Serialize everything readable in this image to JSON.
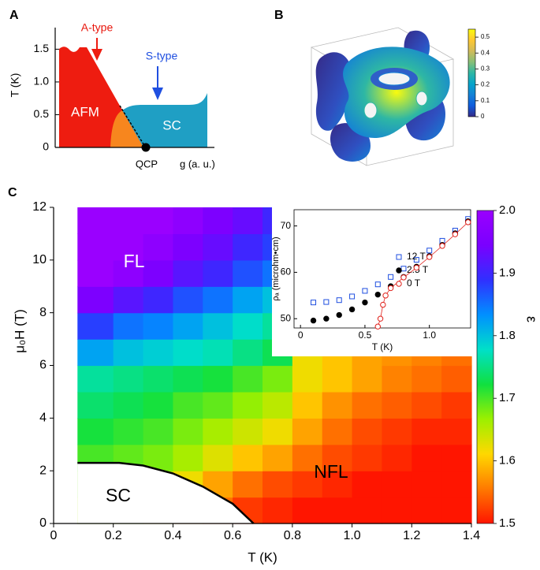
{
  "chart_data": [
    {
      "type": "phase-schematic",
      "panel": "A",
      "ylabel": "T (K)",
      "xlabel": "g (a. u.)",
      "ylim": [
        0,
        1.83
      ],
      "yticks": [
        0,
        0.5,
        {
          "value": 1,
          "label": "1.0"
        },
        1.5
      ],
      "annotations": [
        "AFM",
        "SC",
        "QCP",
        "A-type",
        "S-type"
      ],
      "colors": [
        "#ee1c10",
        "#f7861e",
        "#1f9fc4"
      ]
    },
    {
      "type": "surface",
      "panel": "B",
      "zlim": [
        0,
        0.55
      ],
      "zticks": [
        0,
        0.1,
        0.2,
        0.3,
        0.4,
        0.5
      ],
      "colormap": [
        "#352a87",
        "#0f5cdd",
        "#1481d6",
        "#06a4ca",
        "#2eb7a4",
        "#87bf77",
        "#d1bb59",
        "#fec832",
        "#f9fb0e"
      ]
    },
    {
      "type": "heatmap",
      "panel": "C",
      "xlabel": "T (K)",
      "ylabel": "μ₀H (T)",
      "zlabel": "ε",
      "xlim": [
        0,
        1.4
      ],
      "xticks": [
        0,
        0.2,
        0.4,
        0.6,
        0.8,
        {
          "value": 1,
          "label": "1.0"
        },
        1.2,
        1.4
      ],
      "ylim": [
        0,
        12
      ],
      "yticks": [
        0,
        2,
        4,
        6,
        8,
        10,
        12
      ],
      "zlim": [
        1.5,
        2.0
      ],
      "zticks": [
        1.5,
        1.6,
        1.7,
        1.8,
        1.9,
        {
          "value": 2,
          "label": "2.0"
        }
      ],
      "colormap": [
        "#ff1500",
        "#ff7a00",
        "#ffd800",
        "#9cf000",
        "#10e040",
        "#00e0c8",
        "#0090ff",
        "#3030ff",
        "#7a00ff",
        "#9a00ff"
      ],
      "x_edges": [
        0.08,
        0.2,
        0.3,
        0.4,
        0.5,
        0.6,
        0.7,
        0.8,
        0.9,
        1.0,
        1.1,
        1.2,
        1.3,
        1.4
      ],
      "y_edges": [
        0,
        1,
        2,
        3,
        4,
        5,
        6,
        7,
        8,
        9,
        10,
        11,
        12
      ],
      "z": [
        [
          1.66,
          1.65,
          1.62,
          1.58,
          1.55,
          1.52,
          1.51,
          1.5,
          1.5,
          1.5,
          1.5,
          1.5,
          1.5
        ],
        [
          1.68,
          1.67,
          1.65,
          1.62,
          1.58,
          1.55,
          1.53,
          1.52,
          1.51,
          1.5,
          1.5,
          1.5,
          1.5
        ],
        [
          1.7,
          1.69,
          1.68,
          1.66,
          1.63,
          1.6,
          1.58,
          1.55,
          1.53,
          1.52,
          1.51,
          1.5,
          1.5
        ],
        [
          1.72,
          1.71,
          1.7,
          1.68,
          1.66,
          1.64,
          1.62,
          1.58,
          1.55,
          1.53,
          1.52,
          1.51,
          1.51
        ],
        [
          1.74,
          1.73,
          1.72,
          1.7,
          1.69,
          1.67,
          1.65,
          1.6,
          1.57,
          1.55,
          1.54,
          1.53,
          1.52
        ],
        [
          1.76,
          1.75,
          1.74,
          1.73,
          1.72,
          1.7,
          1.68,
          1.62,
          1.6,
          1.58,
          1.56,
          1.55,
          1.54
        ],
        [
          1.82,
          1.8,
          1.79,
          1.78,
          1.77,
          1.75,
          1.73,
          1.62,
          1.6,
          1.58,
          1.57,
          1.56,
          1.55
        ],
        [
          1.88,
          1.85,
          1.84,
          1.82,
          1.8,
          1.78,
          1.76,
          null,
          null,
          null,
          null,
          null,
          null
        ],
        [
          1.95,
          1.92,
          1.9,
          1.87,
          1.85,
          1.82,
          1.8,
          null,
          null,
          null,
          null,
          null,
          null
        ],
        [
          2.0,
          1.98,
          1.95,
          1.92,
          1.9,
          1.87,
          1.85,
          null,
          null,
          null,
          null,
          null,
          null
        ],
        [
          2.0,
          2.0,
          1.98,
          1.95,
          1.93,
          1.9,
          1.88,
          null,
          null,
          null,
          null,
          null,
          null
        ],
        [
          2.0,
          2.0,
          2.0,
          1.98,
          1.95,
          1.93,
          1.9,
          null,
          null,
          null,
          null,
          null,
          null
        ]
      ],
      "boundary": {
        "x": [
          0.08,
          0.22,
          0.3,
          0.4,
          0.5,
          0.6,
          0.67
        ],
        "y": [
          2.3,
          2.3,
          2.2,
          1.9,
          1.4,
          0.75,
          0
        ]
      },
      "annotations": [
        "FL",
        "SC",
        "NFL"
      ]
    },
    {
      "type": "scatter",
      "xlabel": "T (K)",
      "ylabel": "ρₐ (microhm•cm)",
      "xlim": [
        -0.05,
        1.32
      ],
      "xticks": [
        0,
        0.5,
        {
          "value": 1,
          "label": "1.0"
        }
      ],
      "ylim": [
        48,
        73.5
      ],
      "yticks": [
        50,
        60,
        70
      ],
      "series": [
        {
          "name": "12 T",
          "color": "#1f4fe0",
          "marker": "square-open",
          "x": [
            0.1,
            0.2,
            0.3,
            0.4,
            0.5,
            0.6,
            0.7,
            0.8,
            0.9,
            1.0,
            1.1,
            1.2,
            1.3
          ],
          "values": [
            53.5,
            53.6,
            54,
            54.8,
            56,
            57.4,
            59,
            60.8,
            62.7,
            64.7,
            66.8,
            69,
            71.5
          ]
        },
        {
          "name": "2.5 T",
          "color": "#000000",
          "marker": "circle-filled",
          "x": [
            0.1,
            0.2,
            0.3,
            0.4,
            0.5,
            0.6,
            0.7,
            0.8,
            0.9,
            1.0,
            1.1,
            1.2,
            1.3
          ],
          "values": [
            49.6,
            50,
            50.8,
            52,
            53.5,
            55.2,
            57,
            59,
            61.2,
            63.5,
            65.9,
            68.4,
            71
          ]
        },
        {
          "name": "0 T",
          "color": "#e0201a",
          "marker": "circle-open",
          "x": [
            0.6,
            0.62,
            0.64,
            0.66,
            0.7,
            0.8,
            0.9,
            1.0,
            1.1,
            1.2,
            1.3
          ],
          "values": [
            48.3,
            50,
            53,
            55,
            56.6,
            58.9,
            61,
            63.3,
            65.7,
            68.2,
            70.8
          ]
        }
      ]
    }
  ]
}
